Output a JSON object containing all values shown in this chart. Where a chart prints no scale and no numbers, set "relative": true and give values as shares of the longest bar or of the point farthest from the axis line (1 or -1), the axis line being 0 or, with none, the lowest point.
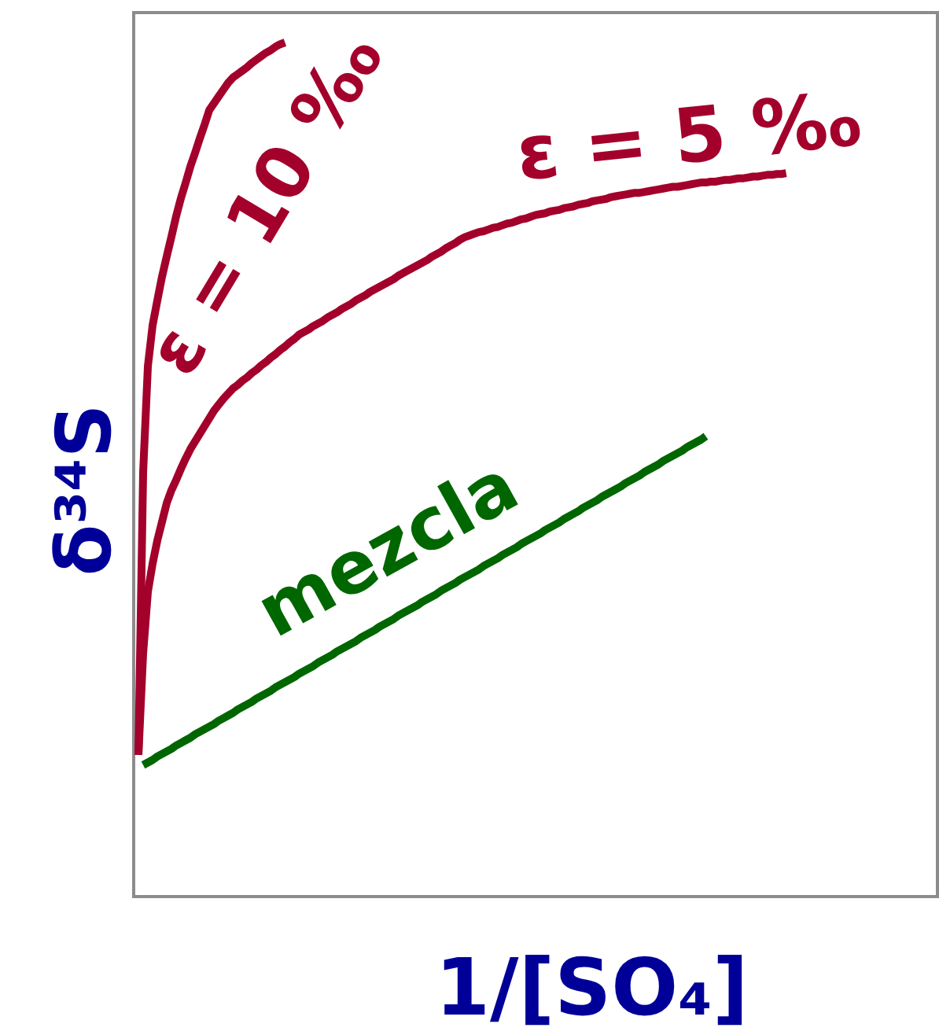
{
  "chart_data": {
    "type": "line",
    "relative": true,
    "xlabel": "1/[SO₄]",
    "ylabel": "δ³⁴S",
    "categories": [
      null,
      null,
      null,
      null,
      null,
      null,
      null,
      null,
      null,
      null,
      null,
      null,
      null,
      null,
      null,
      null,
      null,
      null,
      null,
      null,
      null,
      null,
      null,
      null,
      null,
      null,
      null,
      null,
      null,
      null,
      null,
      null,
      null,
      null,
      null,
      null,
      null,
      null,
      null,
      null,
      null,
      null,
      null,
      null,
      null,
      null,
      null,
      null,
      null,
      null,
      null,
      null,
      null,
      null,
      null,
      null,
      null,
      null,
      null,
      null,
      null,
      null,
      null,
      null,
      null,
      null,
      null,
      null,
      null,
      null,
      null,
      null,
      null,
      null,
      null,
      null,
      null,
      null,
      null,
      null,
      null,
      null,
      null,
      null,
      null,
      null,
      null,
      null,
      null,
      null,
      null,
      null,
      null,
      null,
      null,
      null,
      null,
      null,
      null,
      null,
      null,
      null,
      null,
      null,
      null,
      null,
      null,
      null,
      null,
      null,
      null,
      null,
      null,
      null,
      null,
      null,
      null,
      null,
      null,
      null,
      null,
      null,
      null,
      null,
      null,
      null,
      null,
      null,
      null,
      null,
      null,
      null,
      null,
      null,
      null,
      null,
      null,
      null,
      null,
      null,
      null,
      null,
      null,
      null,
      null,
      null,
      null,
      null,
      null,
      null,
      null,
      null,
      null,
      null,
      null,
      null,
      null,
      null,
      null,
      null,
      null,
      null,
      null,
      null,
      null,
      null,
      null,
      null,
      null,
      null,
      null
    ],
    "series": [
      {
        "name": "ε = 10 ‰",
        "color": "#a3002b",
        "values": [
          null,
          0.166,
          0.497,
          0.621,
          0.669,
          0.698,
          0.726,
          0.75,
          0.773,
          0.797,
          0.818,
          0.836,
          0.855,
          0.871,
          0.888,
          0.904,
          0.921,
          0.929,
          0.937,
          0.945,
          0.953,
          0.959,
          0.963,
          0.967,
          0.971,
          0.976,
          0.98,
          0.984,
          0.988,
          0.991,
          0.995,
          0.998,
          1,
          null,
          null,
          null,
          null,
          null,
          null,
          null,
          null,
          null,
          null,
          null,
          null,
          null,
          null,
          null,
          null,
          null,
          null,
          null,
          null,
          null,
          null,
          null,
          null,
          null,
          null,
          null,
          null,
          null,
          null,
          null,
          null,
          null,
          null,
          null,
          null,
          null,
          null,
          null,
          null,
          null,
          null,
          null,
          null,
          null,
          null,
          null,
          null,
          null,
          null,
          null,
          null,
          null,
          null,
          null,
          null,
          null,
          null,
          null,
          null,
          null,
          null,
          null,
          null,
          null,
          null,
          null,
          null,
          null,
          null,
          null,
          null,
          null,
          null,
          null,
          null,
          null,
          null,
          null,
          null,
          null,
          null,
          null,
          null,
          null,
          null,
          null,
          null,
          null,
          null,
          null,
          null,
          null,
          null,
          null,
          null,
          null,
          null,
          null,
          null,
          null,
          null,
          null,
          null,
          null,
          null,
          null,
          null,
          null,
          null,
          null,
          null,
          null,
          null,
          null,
          null,
          null,
          null,
          null,
          null,
          null,
          null,
          null,
          null,
          null,
          null,
          null,
          null,
          null,
          null,
          null,
          null,
          null,
          null,
          null,
          null,
          null,
          null
        ]
      },
      {
        "name": "ε = 5 ‰",
        "color": "#a3002b",
        "values": [
          null,
          0.166,
          0.285,
          0.357,
          0.39,
          0.417,
          0.439,
          0.461,
          0.476,
          0.488,
          0.501,
          0.513,
          0.524,
          0.533,
          0.542,
          0.551,
          0.56,
          0.569,
          0.576,
          0.583,
          0.589,
          0.595,
          0.599,
          0.604,
          0.608,
          0.613,
          0.617,
          0.622,
          0.626,
          0.631,
          0.635,
          0.64,
          0.644,
          0.649,
          0.653,
          0.658,
          0.661,
          0.664,
          0.668,
          0.671,
          0.674,
          0.678,
          0.681,
          0.684,
          0.688,
          0.691,
          0.694,
          0.698,
          0.701,
          0.704,
          0.708,
          0.711,
          0.714,
          0.717,
          0.72,
          0.723,
          0.727,
          0.73,
          0.733,
          0.736,
          0.739,
          0.742,
          0.745,
          0.749,
          0.752,
          0.755,
          0.759,
          0.762,
          0.765,
          0.769,
          0.772,
          0.774,
          0.776,
          0.778,
          0.779,
          0.781,
          0.783,
          0.784,
          0.786,
          0.788,
          0.789,
          0.791,
          0.793,
          0.794,
          0.796,
          0.798,
          0.799,
          0.8,
          0.802,
          0.803,
          0.804,
          0.806,
          0.807,
          0.808,
          0.81,
          0.811,
          0.812,
          0.814,
          0.815,
          0.816,
          0.817,
          0.819,
          0.82,
          0.821,
          0.822,
          0.823,
          0.824,
          0.824,
          0.825,
          0.826,
          0.827,
          0.828,
          0.829,
          0.83,
          0.831,
          0.831,
          0.832,
          0.833,
          0.834,
          0.835,
          0.836,
          0.836,
          0.837,
          0.837,
          0.838,
          0.839,
          0.839,
          0.84,
          0.841,
          0.841,
          0.842,
          0.843,
          0.843,
          0.844,
          0.845,
          0.845,
          0.846,
          0.846,
          0.847,
          null,
          null,
          null,
          null,
          null,
          null,
          null,
          null,
          null,
          null,
          null,
          null,
          null,
          null,
          null,
          null,
          null,
          null,
          null,
          null,
          null,
          null,
          null,
          null,
          null,
          null,
          null,
          null,
          null,
          null,
          null,
          null
        ]
      },
      {
        "name": "mezcla",
        "color": "#006600",
        "values": [
          null,
          null,
          0.154,
          0.157,
          0.16,
          0.164,
          0.167,
          0.17,
          0.173,
          0.177,
          0.18,
          0.183,
          0.186,
          0.19,
          0.193,
          0.196,
          0.199,
          0.202,
          0.206,
          0.209,
          0.212,
          0.215,
          0.219,
          0.222,
          0.225,
          0.228,
          0.232,
          0.235,
          0.238,
          0.241,
          0.245,
          0.248,
          0.251,
          0.254,
          0.257,
          0.261,
          0.264,
          0.267,
          0.27,
          0.274,
          0.277,
          0.28,
          0.283,
          0.287,
          0.29,
          0.293,
          0.296,
          0.299,
          0.303,
          0.306,
          0.309,
          0.312,
          0.316,
          0.319,
          0.322,
          0.325,
          0.329,
          0.332,
          0.335,
          0.338,
          0.341,
          0.345,
          0.348,
          0.351,
          0.354,
          0.358,
          0.361,
          0.364,
          0.367,
          0.371,
          0.374,
          0.377,
          0.38,
          0.383,
          0.387,
          0.39,
          0.393,
          0.396,
          0.4,
          0.403,
          0.406,
          0.409,
          0.413,
          0.416,
          0.419,
          0.422,
          0.425,
          0.429,
          0.432,
          0.435,
          0.438,
          0.442,
          0.445,
          0.448,
          0.451,
          0.455,
          0.458,
          0.461,
          0.464,
          0.468,
          0.471,
          0.474,
          0.477,
          0.48,
          0.484,
          0.487,
          0.49,
          0.493,
          0.497,
          0.5,
          0.503,
          0.506,
          0.51,
          0.513,
          0.516,
          0.519,
          0.522,
          0.526,
          0.529,
          0.532,
          0.535,
          0.539,
          null,
          null,
          null,
          null,
          null,
          null,
          null,
          null,
          null,
          null,
          null,
          null,
          null,
          null,
          null,
          null,
          null,
          null,
          null,
          null,
          null,
          null,
          null,
          null,
          null,
          null,
          null,
          null,
          null,
          null,
          null,
          null,
          null,
          null,
          null,
          null,
          null,
          null,
          null,
          null,
          null,
          null,
          null,
          null,
          null,
          null,
          null,
          null,
          null
        ]
      }
    ]
  }
}
